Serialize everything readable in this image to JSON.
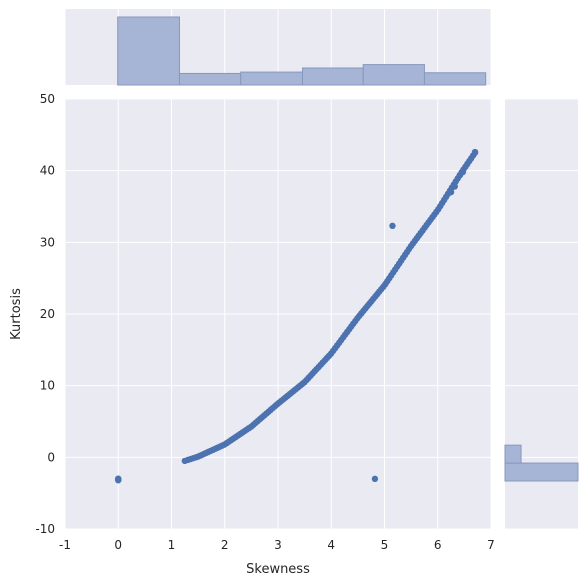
{
  "chart_data": {
    "type": "scatter",
    "style": "jointplot with marginal histograms",
    "xlabel": "Skewness",
    "ylabel": "Kurtosis",
    "xlim": [
      -1,
      7
    ],
    "ylim": [
      -10,
      50
    ],
    "xticks": [
      -1,
      0,
      1,
      2,
      3,
      4,
      5,
      6,
      7
    ],
    "yticks": [
      -10,
      0,
      10,
      20,
      30,
      40,
      50
    ],
    "grid": true,
    "colors": {
      "background": "#eaeaf2",
      "grid": "#ffffff",
      "points": "#4c72b0",
      "histogram_fill": "#a6b5d6",
      "histogram_edge": "#8797bd",
      "text": "#262626"
    },
    "points": [
      {
        "x": 0.0,
        "y": -3.0
      },
      {
        "x": 0.0,
        "y": -3.0
      },
      {
        "x": 0.0,
        "y": -3.0
      },
      {
        "x": 0.0,
        "y": -3.1
      },
      {
        "x": 0.0,
        "y": -3.1
      },
      {
        "x": 0.0,
        "y": -3.2
      },
      {
        "x": 4.82,
        "y": -3.0
      },
      {
        "x": 5.15,
        "y": 32.3
      }
    ],
    "curve": {
      "description": "dense band of points following kurtosis ≈ skewness²-related curve",
      "anchors": [
        {
          "x": 1.25,
          "y": -0.5
        },
        {
          "x": 1.5,
          "y": 0.1
        },
        {
          "x": 2.0,
          "y": 1.8
        },
        {
          "x": 2.5,
          "y": 4.3
        },
        {
          "x": 3.0,
          "y": 7.5
        },
        {
          "x": 3.5,
          "y": 10.5
        },
        {
          "x": 4.0,
          "y": 14.5
        },
        {
          "x": 4.5,
          "y": 19.5
        },
        {
          "x": 5.0,
          "y": 24.0
        },
        {
          "x": 5.5,
          "y": 29.5
        },
        {
          "x": 6.0,
          "y": 34.5
        },
        {
          "x": 6.45,
          "y": 39.8
        },
        {
          "x": 6.7,
          "y": 42.5
        }
      ],
      "n_points": 140
    },
    "extra_curve_points": [
      {
        "x": 6.25,
        "y": 37.0
      },
      {
        "x": 6.32,
        "y": 37.8
      },
      {
        "x": 6.42,
        "y": 39.4
      },
      {
        "x": 6.47,
        "y": 39.8
      },
      {
        "x": 6.7,
        "y": 42.6
      }
    ],
    "marginal_x": {
      "bins": [
        [
          -0.01,
          1.15
        ],
        [
          1.15,
          2.3
        ],
        [
          2.3,
          3.46
        ],
        [
          3.46,
          4.6
        ],
        [
          4.6,
          5.75
        ],
        [
          5.75,
          6.9
        ]
      ],
      "heights": [
        1.0,
        0.17,
        0.19,
        0.25,
        0.3,
        0.18
      ]
    },
    "marginal_y": {
      "bins": [
        [
          -3.3,
          -0.8
        ],
        [
          -0.8,
          1.7
        ]
      ],
      "widths": [
        1.0,
        0.22
      ]
    }
  }
}
